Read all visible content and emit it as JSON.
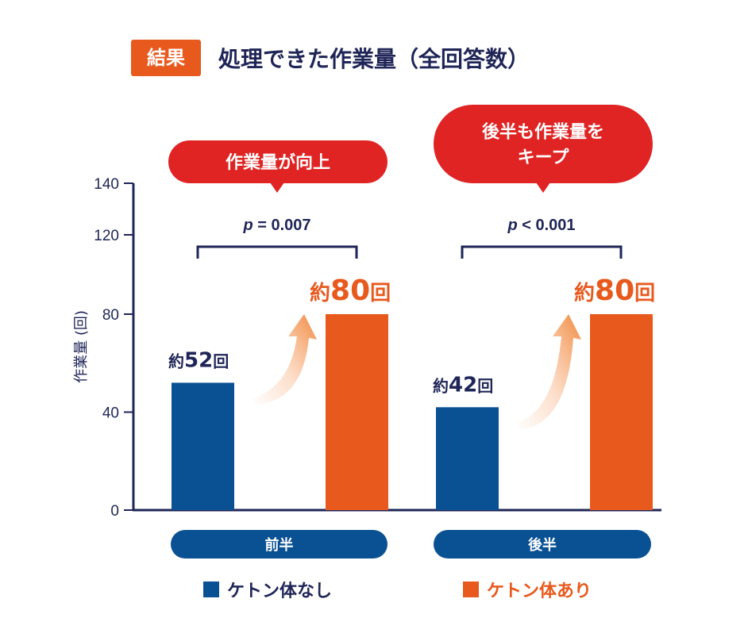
{
  "header": {
    "badge": "結果",
    "title": "処理できた作業量（全回答数）"
  },
  "colors": {
    "navy": "#0a5194",
    "orange": "#e8591e",
    "red": "#e02424",
    "text": "#1f2557"
  },
  "chart_data": {
    "type": "bar",
    "ylabel": "作業量 (回)",
    "ylim": [
      0,
      140
    ],
    "y_ticks": [
      "0",
      "40",
      "80",
      "120",
      "140"
    ],
    "categories": [
      "前半",
      "後半"
    ],
    "series": [
      {
        "name": "ケトン体なし",
        "values": [
          52,
          42
        ],
        "labels": [
          "約52回",
          "約42回"
        ]
      },
      {
        "name": "ケトン体あり",
        "values": [
          80,
          80
        ],
        "labels": [
          "約80回",
          "約80回"
        ]
      }
    ],
    "significance": [
      "p = 0.007",
      "p < 0.001"
    ],
    "callouts": [
      "作業量が向上",
      "後半も作業量を\nキープ"
    ],
    "legend_position": "bottom"
  }
}
